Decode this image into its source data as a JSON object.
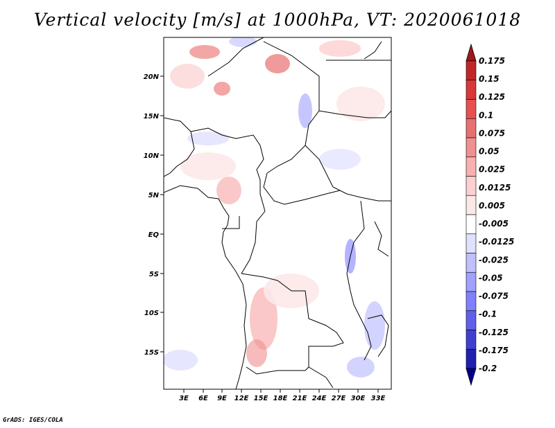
{
  "title": "Vertical velocity [m/s] at 1000hPa, VT: 2020061018",
  "credit": "GrADS: IGES/COLA",
  "map": {
    "lat_ticks": [
      "20N",
      "15N",
      "10N",
      "5N",
      "EQ",
      "5S",
      "10S",
      "15S"
    ],
    "lon_ticks": [
      "3E",
      "6E",
      "9E",
      "12E",
      "15E",
      "18E",
      "21E",
      "24E",
      "27E",
      "30E",
      "33E"
    ]
  },
  "colorbar": {
    "levels": [
      "0.175",
      "0.15",
      "0.125",
      "0.1",
      "0.075",
      "0.05",
      "0.025",
      "0.0125",
      "0.005",
      "-0.005",
      "-0.0125",
      "-0.025",
      "-0.05",
      "-0.075",
      "-0.1",
      "-0.125",
      "-0.175",
      "-0.2"
    ],
    "colors": [
      "#a01818",
      "#c02828",
      "#d83838",
      "#e85050",
      "#e87070",
      "#f09090",
      "#f8b0b0",
      "#fcd0d0",
      "#fde8e8",
      "#ffffff",
      "#e0e0ff",
      "#c0c0ff",
      "#a0a0ff",
      "#8080ff",
      "#6060e8",
      "#4040d0",
      "#2020b0",
      "#000090"
    ]
  }
}
